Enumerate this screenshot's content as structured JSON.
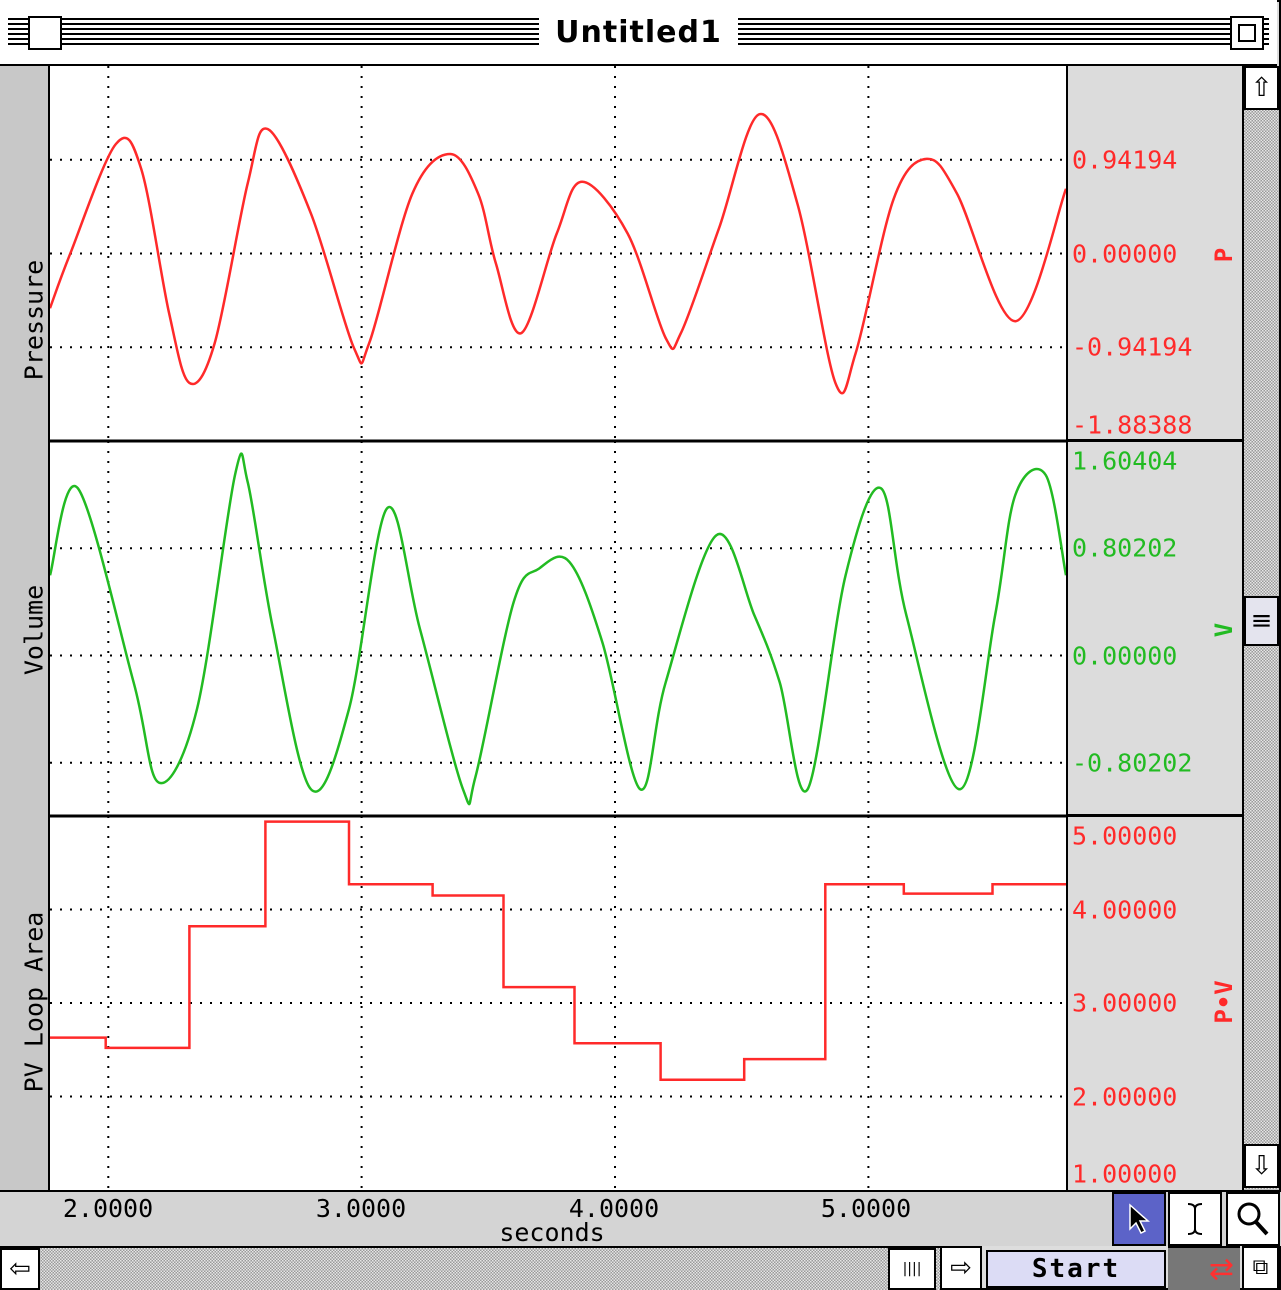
{
  "window": {
    "title": "Untitled1"
  },
  "channels": [
    {
      "name": "Pressure",
      "unit": "P",
      "color": "#ff2a2a",
      "tick_labels": [
        "0.94194",
        "0.00000",
        "-0.94194",
        "-1.88388"
      ]
    },
    {
      "name": "Volume",
      "unit": "V",
      "color": "#22bb22",
      "tick_labels": [
        "1.60404",
        "0.80202",
        "0.00000",
        "-0.80202"
      ]
    },
    {
      "name": "PV Loop Area",
      "unit": "P•V",
      "color": "#ff2a2a",
      "tick_labels": [
        "5.00000",
        "4.00000",
        "3.00000",
        "2.00000",
        "1.00000"
      ]
    }
  ],
  "x_axis": {
    "label": "seconds",
    "ticks": [
      "2.0000",
      "3.0000",
      "4.0000",
      "5.0000"
    ]
  },
  "tools": [
    "arrow-pointer-icon",
    "text-cursor-icon",
    "magnifier-icon"
  ],
  "icons": {
    "up": "⇧",
    "down": "⇩",
    "left": "⇦",
    "right": "⇨",
    "thumb": "≡",
    "hthumb": "||||",
    "swap": "⇄",
    "resize": "⧉"
  },
  "controls": {
    "start_label": "Start"
  },
  "chart_data": [
    {
      "type": "line",
      "title": "",
      "xlabel": "seconds",
      "ylabel": "Pressure",
      "xlim": [
        1.77,
        5.78
      ],
      "ylim": [
        -1.88388,
        1.88388
      ],
      "yticks": [
        0.94194,
        0.0,
        -0.94194,
        -1.88388
      ],
      "xticks": [
        2.0,
        3.0,
        4.0,
        5.0
      ],
      "grid": true,
      "series": [
        {
          "name": "P",
          "color": "#ff2a2a",
          "x": [
            1.77,
            1.85,
            2.03,
            2.13,
            2.24,
            2.32,
            2.42,
            2.55,
            2.63,
            2.8,
            2.97,
            3.03,
            3.2,
            3.35,
            3.46,
            3.53,
            3.63,
            3.77,
            3.87,
            4.05,
            4.2,
            4.26,
            4.41,
            4.57,
            4.72,
            4.87,
            4.95,
            5.1,
            5.23,
            5.35,
            5.58,
            5.78
          ],
          "y": [
            -0.55,
            0.0,
            1.1,
            0.85,
            -0.6,
            -1.3,
            -0.9,
            0.7,
            1.25,
            0.4,
            -0.95,
            -0.9,
            0.6,
            1.0,
            0.6,
            -0.1,
            -0.8,
            0.2,
            0.72,
            0.2,
            -0.85,
            -0.8,
            0.25,
            1.4,
            0.5,
            -1.3,
            -1.0,
            0.55,
            0.95,
            0.6,
            -0.68,
            0.65
          ]
        }
      ]
    },
    {
      "type": "line",
      "title": "",
      "xlabel": "seconds",
      "ylabel": "Volume",
      "xlim": [
        1.77,
        5.78
      ],
      "ylim": [
        -1.2,
        1.60404
      ],
      "yticks": [
        1.60404,
        0.80202,
        0.0,
        -0.80202
      ],
      "xticks": [
        2.0,
        3.0,
        4.0,
        5.0
      ],
      "grid": true,
      "series": [
        {
          "name": "V",
          "color": "#22bb22",
          "x": [
            1.77,
            1.88,
            2.1,
            2.2,
            2.35,
            2.5,
            2.55,
            2.65,
            2.8,
            2.95,
            3.1,
            3.23,
            3.4,
            3.45,
            3.6,
            3.7,
            3.82,
            3.95,
            4.1,
            4.2,
            4.4,
            4.55,
            4.65,
            4.76,
            4.91,
            5.05,
            5.15,
            5.36,
            5.5,
            5.58,
            5.7,
            5.78
          ],
          "y": [
            0.6,
            1.25,
            -0.2,
            -0.95,
            -0.4,
            1.35,
            1.3,
            0.2,
            -1.0,
            -0.4,
            1.1,
            0.2,
            -1.0,
            -0.9,
            0.4,
            0.65,
            0.7,
            0.1,
            -1.0,
            -0.2,
            0.9,
            0.3,
            -0.2,
            -1.0,
            0.6,
            1.25,
            0.3,
            -1.0,
            0.3,
            1.2,
            1.35,
            0.6
          ]
        }
      ]
    },
    {
      "type": "line",
      "title": "",
      "xlabel": "seconds",
      "ylabel": "PV Loop Area",
      "xlim": [
        1.77,
        5.78
      ],
      "ylim": [
        1.0,
        5.0
      ],
      "yticks": [
        5.0,
        4.0,
        3.0,
        2.0,
        1.0
      ],
      "xticks": [
        2.0,
        3.0,
        4.0,
        5.0
      ],
      "grid": true,
      "series": [
        {
          "name": "P•V",
          "color": "#ff2a2a",
          "step": true,
          "x": [
            1.77,
            1.99,
            2.32,
            2.62,
            2.95,
            3.28,
            3.56,
            3.84,
            4.18,
            4.51,
            4.83,
            5.14,
            5.49,
            5.78
          ],
          "y": [
            2.63,
            2.52,
            3.82,
            4.94,
            4.27,
            4.15,
            3.17,
            2.57,
            2.18,
            2.4,
            4.27,
            4.17,
            4.27,
            4.27
          ]
        }
      ]
    }
  ]
}
